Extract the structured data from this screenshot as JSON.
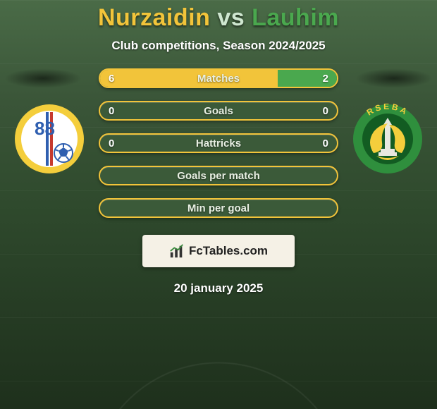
{
  "title": {
    "left_name": "Nurzaidin",
    "vs": "vs",
    "right_name": "Lauhim",
    "left_color": "#f2c43a",
    "vs_color": "#cfe7d0",
    "right_color": "#4aa84e"
  },
  "subtitle": "Club competitions, Season 2024/2025",
  "colors": {
    "left_team": "#f2c43a",
    "right_team": "#4aa84e",
    "bar_track": "#3b5a39",
    "bar_border_empty": "#f2c43a",
    "bar_text": "#e8efe3",
    "value_text": "#ffffff"
  },
  "bars": [
    {
      "label": "Matches",
      "left_val": "6",
      "right_val": "2",
      "left_pct": 75,
      "right_pct": 25,
      "filled": true
    },
    {
      "label": "Goals",
      "left_val": "0",
      "right_val": "0",
      "left_pct": 0,
      "right_pct": 0,
      "filled": false
    },
    {
      "label": "Hattricks",
      "left_val": "0",
      "right_val": "0",
      "left_pct": 0,
      "right_pct": 0,
      "filled": false
    },
    {
      "label": "Goals per match",
      "left_val": "",
      "right_val": "",
      "left_pct": 0,
      "right_pct": 0,
      "filled": false
    },
    {
      "label": "Min per goal",
      "left_val": "",
      "right_val": "",
      "left_pct": 0,
      "right_pct": 0,
      "filled": false
    }
  ],
  "brand": {
    "text": "FcTables.com"
  },
  "date": "20 january 2025",
  "badges": {
    "left": {
      "bg": "#f4ce3c",
      "inner_bg": "#ffffff",
      "number": "88",
      "number_color": "#2f5fb0",
      "stripe_blue": "#2f5fb0",
      "stripe_red": "#c63a2e",
      "ball_color": "#2f5fb0"
    },
    "right": {
      "bg": "#2f8f3d",
      "ring_text": "RSEBA",
      "ring_text_color": "#f4ce3c",
      "inner_bg": "#125c22",
      "accent": "#f4ce3c"
    }
  }
}
